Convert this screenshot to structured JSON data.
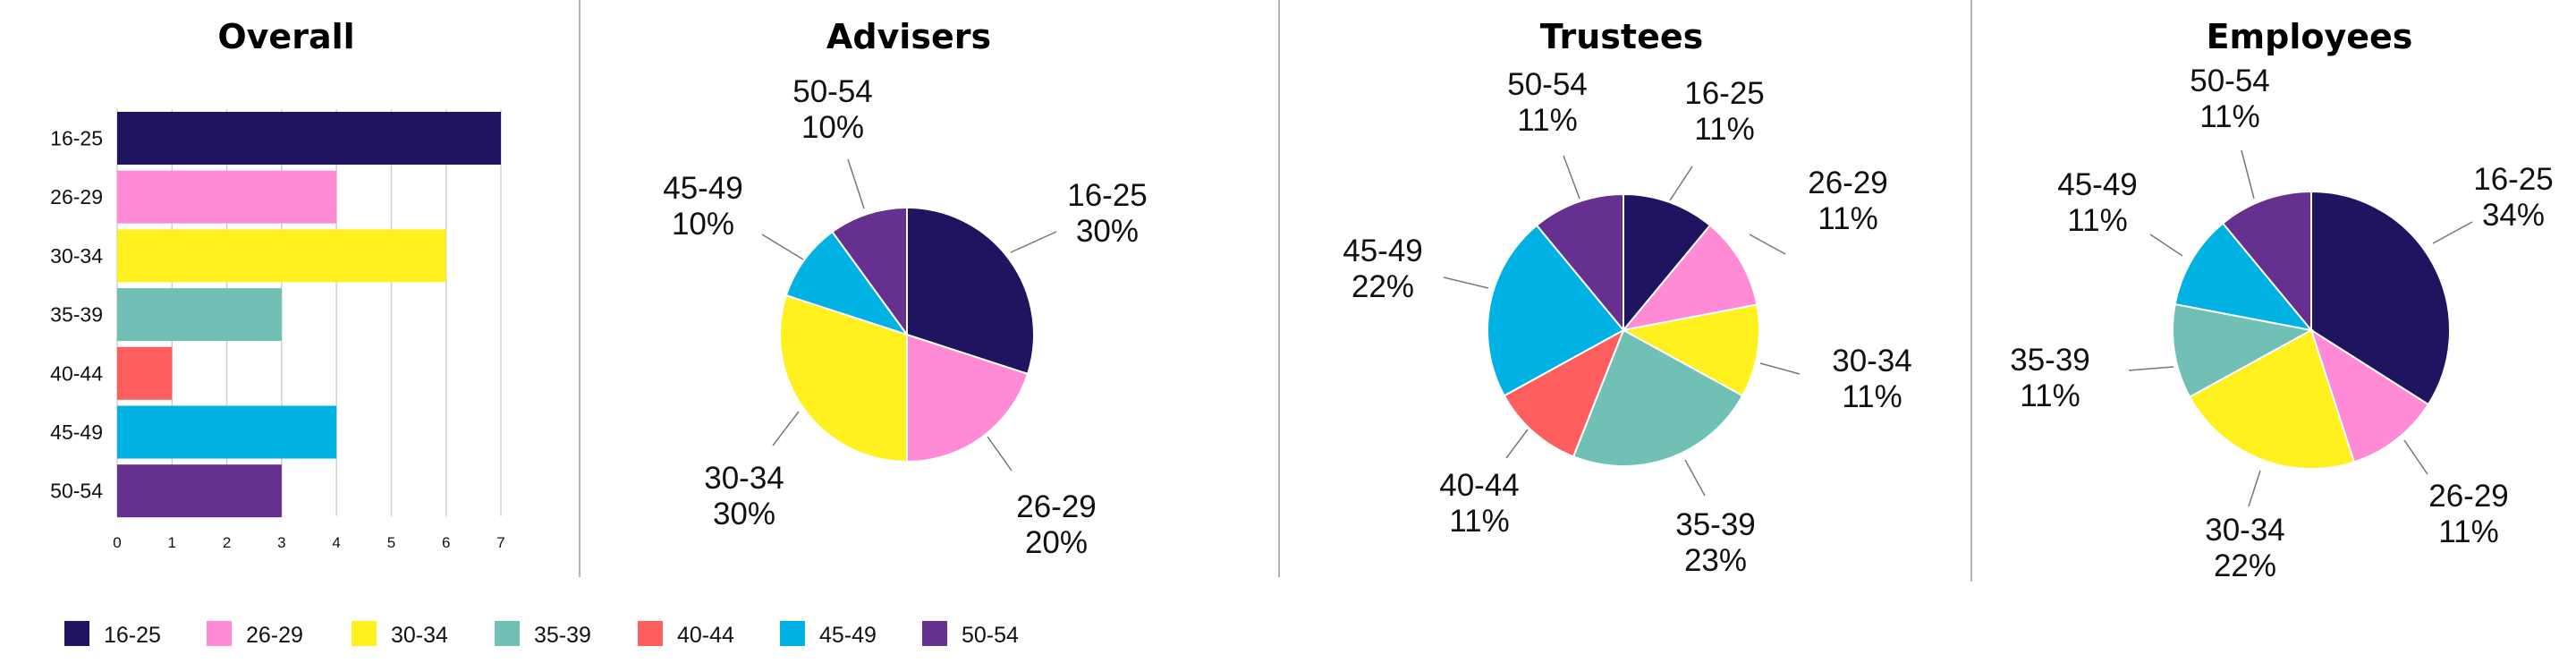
{
  "colors": {
    "16-25": "#1e1460",
    "26-29": "#ff8ad6",
    "30-34": "#fff01e",
    "35-39": "#70c0b6",
    "40-44": "#ff5e5e",
    "45-49": "#00b2e3",
    "50-54": "#65308f"
  },
  "legend": {
    "items": [
      "16-25",
      "26-29",
      "30-34",
      "35-39",
      "40-44",
      "45-49",
      "50-54"
    ]
  },
  "chart_data": [
    {
      "type": "bar",
      "orientation": "horizontal",
      "title": "Overall",
      "categories": [
        "16-25",
        "26-29",
        "30-34",
        "35-39",
        "40-44",
        "45-49",
        "50-54"
      ],
      "values": [
        7,
        4,
        6,
        3,
        1,
        4,
        3
      ],
      "xlim": [
        0,
        7
      ],
      "xticks": [
        "0",
        "1",
        "2",
        "3",
        "4",
        "5",
        "6",
        "7"
      ],
      "grid": true
    },
    {
      "type": "pie",
      "title": "Advisers",
      "slices": [
        {
          "label": "16-25",
          "value": 30,
          "text": "30%"
        },
        {
          "label": "26-29",
          "value": 20,
          "text": "20%"
        },
        {
          "label": "30-34",
          "value": 30,
          "text": "30%"
        },
        {
          "label": "45-49",
          "value": 10,
          "text": "10%"
        },
        {
          "label": "50-54",
          "value": 10,
          "text": "10%"
        }
      ]
    },
    {
      "type": "pie",
      "title": "Trustees",
      "slices": [
        {
          "label": "16-25",
          "value": 11,
          "text": "11%"
        },
        {
          "label": "26-29",
          "value": 11,
          "text": "11%"
        },
        {
          "label": "30-34",
          "value": 11,
          "text": "11%"
        },
        {
          "label": "35-39",
          "value": 23,
          "text": "23%"
        },
        {
          "label": "40-44",
          "value": 11,
          "text": "11%"
        },
        {
          "label": "45-49",
          "value": 22,
          "text": "22%"
        },
        {
          "label": "50-54",
          "value": 11,
          "text": "11%"
        }
      ]
    },
    {
      "type": "pie",
      "title": "Employees",
      "slices": [
        {
          "label": "16-25",
          "value": 34,
          "text": "34%"
        },
        {
          "label": "26-29",
          "value": 11,
          "text": "11%"
        },
        {
          "label": "30-34",
          "value": 22,
          "text": "22%"
        },
        {
          "label": "35-39",
          "value": 11,
          "text": "11%"
        },
        {
          "label": "45-49",
          "value": 11,
          "text": "11%"
        },
        {
          "label": "50-54",
          "value": 11,
          "text": "11%"
        }
      ]
    }
  ]
}
